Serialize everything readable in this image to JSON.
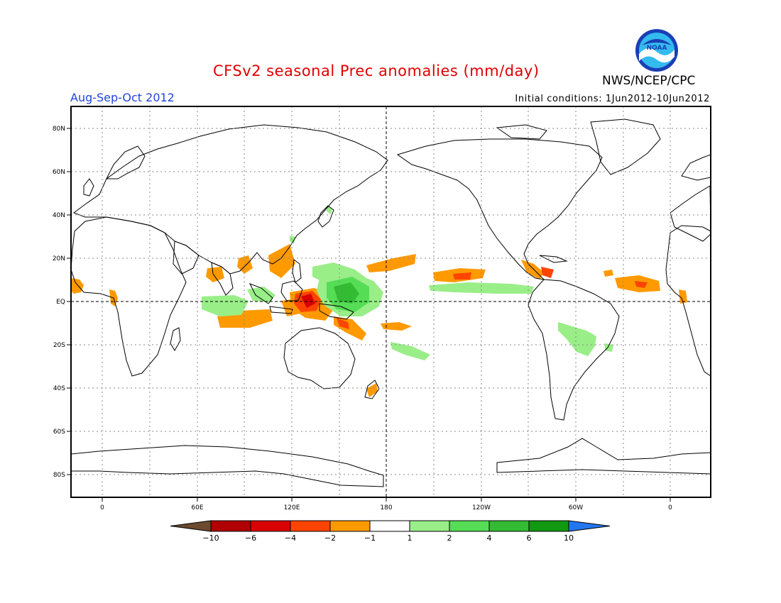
{
  "title": "CFSv2 seasonal Prec anomalies (mm/day)",
  "period": "Aug-Sep-Oct 2012",
  "initial_conditions": "Initial conditions: 1Jun2012-10Jun2012",
  "agency": "NWS/NCEP/CPC",
  "logo_text": "NOAA",
  "map": {
    "lat_ticks": [
      "80N",
      "60N",
      "40N",
      "20N",
      "EQ",
      "20S",
      "40S",
      "60S",
      "80S"
    ],
    "lon_ticks": [
      "0",
      "60E",
      "120E",
      "180",
      "120W",
      "60W",
      "0"
    ]
  },
  "colorbar": {
    "labels": [
      "-10",
      "-6",
      "-4",
      "-2",
      "-1",
      "1",
      "2",
      "4",
      "6",
      "10"
    ],
    "colors": [
      "#6b4a2e",
      "#b00000",
      "#d80000",
      "#ff4400",
      "#ff9900",
      "#ffffff",
      "#99ee88",
      "#55dd55",
      "#33bb33",
      "#119911",
      "#2277ee"
    ]
  },
  "colors": {
    "dry_light": "#ff9900",
    "dry_mid": "#ff4400",
    "dry_strong": "#d80000",
    "wet_light": "#99ee88",
    "wet_mid": "#55dd55",
    "wet_strong": "#33bb33"
  }
}
